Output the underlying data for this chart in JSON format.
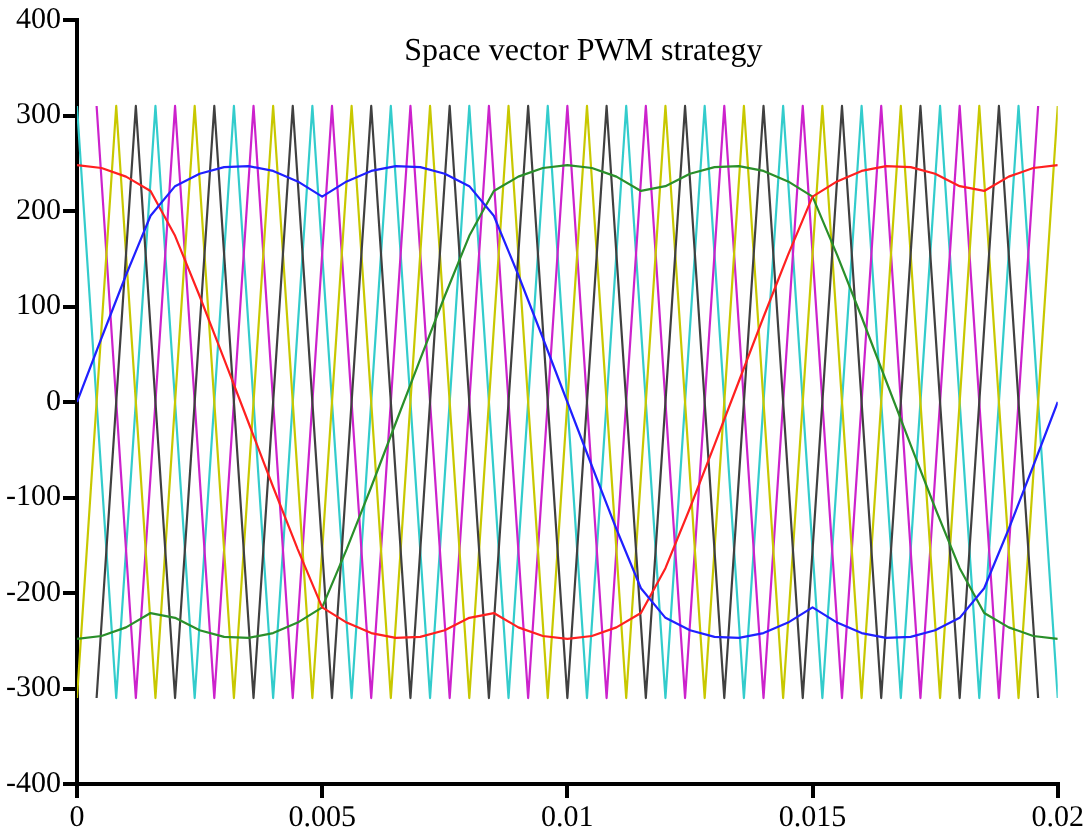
{
  "chart_data": {
    "type": "line",
    "title": "Space vector PWM strategy",
    "xlim": [
      0,
      0.02
    ],
    "xticks": [
      0,
      0.005,
      0.01,
      0.015,
      0.02
    ],
    "ylim": [
      -400,
      400
    ],
    "yticks": [
      -400,
      -300,
      -200,
      -100,
      0,
      100,
      200,
      300,
      400
    ],
    "grid": false,
    "legend": false,
    "marker": "none",
    "line_style": "solid",
    "series": [
      {
        "color": "#33cccc",
        "x": [
          0,
          0.0008,
          0.0016,
          0.0024,
          0.0032,
          0.004,
          0.0048,
          0.0056,
          0.0064,
          0.0072,
          0.008,
          0.0088,
          0.0096,
          0.0104,
          0.0112,
          0.012,
          0.0128,
          0.0136,
          0.0144,
          0.0152,
          0.016,
          0.0168,
          0.0176,
          0.0184,
          0.0192,
          0.02
        ],
        "values": [
          310,
          -310,
          310,
          -310,
          310,
          -310,
          310,
          -310,
          310,
          -310,
          310,
          -310,
          310,
          -310,
          310,
          -310,
          310,
          -310,
          310,
          -310,
          310,
          -310,
          310,
          -310,
          310,
          -310
        ]
      },
      {
        "color": "#cc22cc",
        "x": [
          0.0004,
          0.0012,
          0.002,
          0.0028,
          0.0036,
          0.0044,
          0.0052,
          0.006,
          0.0068,
          0.0076,
          0.0084,
          0.0092,
          0.01,
          0.0108,
          0.0116,
          0.0124,
          0.0132,
          0.014,
          0.0148,
          0.0156,
          0.0164,
          0.0172,
          0.018,
          0.0188,
          0.0196
        ],
        "values": [
          310,
          -310,
          310,
          -310,
          310,
          -310,
          310,
          -310,
          310,
          -310,
          310,
          -310,
          310,
          -310,
          310,
          -310,
          310,
          -310,
          310,
          -310,
          310,
          -310,
          310,
          -310,
          310
        ]
      },
      {
        "color": "#c8c800",
        "x": [
          0,
          0.0008,
          0.0016,
          0.0024,
          0.0032,
          0.004,
          0.0048,
          0.0056,
          0.0064,
          0.0072,
          0.008,
          0.0088,
          0.0096,
          0.0104,
          0.0112,
          0.012,
          0.0128,
          0.0136,
          0.0144,
          0.0152,
          0.016,
          0.0168,
          0.0176,
          0.0184,
          0.0192,
          0.02
        ],
        "values": [
          -310,
          310,
          -310,
          310,
          -310,
          310,
          -310,
          310,
          -310,
          310,
          -310,
          310,
          -310,
          310,
          -310,
          310,
          -310,
          310,
          -310,
          310,
          -310,
          310,
          -310,
          310,
          -310,
          310
        ]
      },
      {
        "color": "#404040",
        "x": [
          0.0004,
          0.0012,
          0.002,
          0.0028,
          0.0036,
          0.0044,
          0.0052,
          0.006,
          0.0068,
          0.0076,
          0.0084,
          0.0092,
          0.01,
          0.0108,
          0.0116,
          0.0124,
          0.0132,
          0.014,
          0.0148,
          0.0156,
          0.0164,
          0.0172,
          0.018,
          0.0188,
          0.0196
        ],
        "values": [
          -310,
          310,
          -310,
          310,
          -310,
          310,
          -310,
          310,
          -310,
          310,
          -310,
          310,
          -310,
          310,
          -310,
          310,
          -310,
          310,
          -310,
          310,
          -310,
          310,
          -310,
          310,
          -310
        ]
      },
      {
        "color": "#2a8f2a",
        "x": [
          0,
          0.0005,
          0.001,
          0.0015,
          0.002,
          0.0025,
          0.003,
          0.0035,
          0.004,
          0.0045,
          0.005,
          0.0055,
          0.006,
          0.0065,
          0.007,
          0.0075,
          0.008,
          0.0085,
          0.009,
          0.0095,
          0.01,
          0.0105,
          0.011,
          0.0115,
          0.012,
          0.0125,
          0.013,
          0.0135,
          0.014,
          0.0145,
          0.015,
          0.0155,
          0.016,
          0.0165,
          0.017,
          0.0175,
          0.018,
          0.0185,
          0.019,
          0.0195,
          0.02
        ],
        "values": [
          -248,
          -245,
          -236,
          -221,
          -226,
          -239,
          -246,
          -247,
          -242,
          -231,
          -215,
          -154,
          -89,
          -22,
          45,
          111,
          174,
          221,
          236,
          245,
          248,
          245,
          236,
          221,
          226,
          239,
          246,
          247,
          242,
          231,
          215,
          154,
          89,
          22,
          -45,
          -111,
          -174,
          -221,
          -236,
          -245,
          -248
        ]
      },
      {
        "color": "#ff2020",
        "x": [
          0,
          0.0005,
          0.001,
          0.0015,
          0.002,
          0.0025,
          0.003,
          0.0035,
          0.004,
          0.0045,
          0.005,
          0.0055,
          0.006,
          0.0065,
          0.007,
          0.0075,
          0.008,
          0.0085,
          0.009,
          0.0095,
          0.01,
          0.0105,
          0.011,
          0.0115,
          0.012,
          0.0125,
          0.013,
          0.0135,
          0.014,
          0.0145,
          0.015,
          0.0155,
          0.016,
          0.0165,
          0.017,
          0.0175,
          0.018,
          0.0185,
          0.019,
          0.0195,
          0.02
        ],
        "values": [
          248,
          245,
          236,
          221,
          174,
          111,
          45,
          -22,
          -89,
          -154,
          -215,
          -231,
          -242,
          -247,
          -246,
          -239,
          -226,
          -221,
          -236,
          -245,
          -248,
          -245,
          -236,
          -221,
          -174,
          -111,
          -45,
          22,
          89,
          154,
          215,
          231,
          242,
          247,
          246,
          239,
          226,
          221,
          236,
          245,
          248
        ]
      },
      {
        "color": "#2020ff",
        "x": [
          0,
          0.0005,
          0.001,
          0.0015,
          0.002,
          0.0025,
          0.003,
          0.0035,
          0.004,
          0.0045,
          0.005,
          0.0055,
          0.006,
          0.0065,
          0.007,
          0.0075,
          0.008,
          0.0085,
          0.009,
          0.0095,
          0.01,
          0.0105,
          0.011,
          0.0115,
          0.012,
          0.0125,
          0.013,
          0.0135,
          0.014,
          0.0145,
          0.015,
          0.0155,
          0.016,
          0.0165,
          0.017,
          0.0175,
          0.018,
          0.0185,
          0.019,
          0.0195,
          0.02
        ],
        "values": [
          0,
          67,
          133,
          195,
          226,
          239,
          246,
          247,
          242,
          231,
          215,
          231,
          242,
          247,
          246,
          239,
          226,
          195,
          133,
          67,
          0,
          -67,
          -133,
          -195,
          -226,
          -239,
          -246,
          -247,
          -242,
          -231,
          -215,
          -231,
          -242,
          -247,
          -246,
          -239,
          -226,
          -195,
          -133,
          -67,
          0
        ]
      }
    ]
  }
}
